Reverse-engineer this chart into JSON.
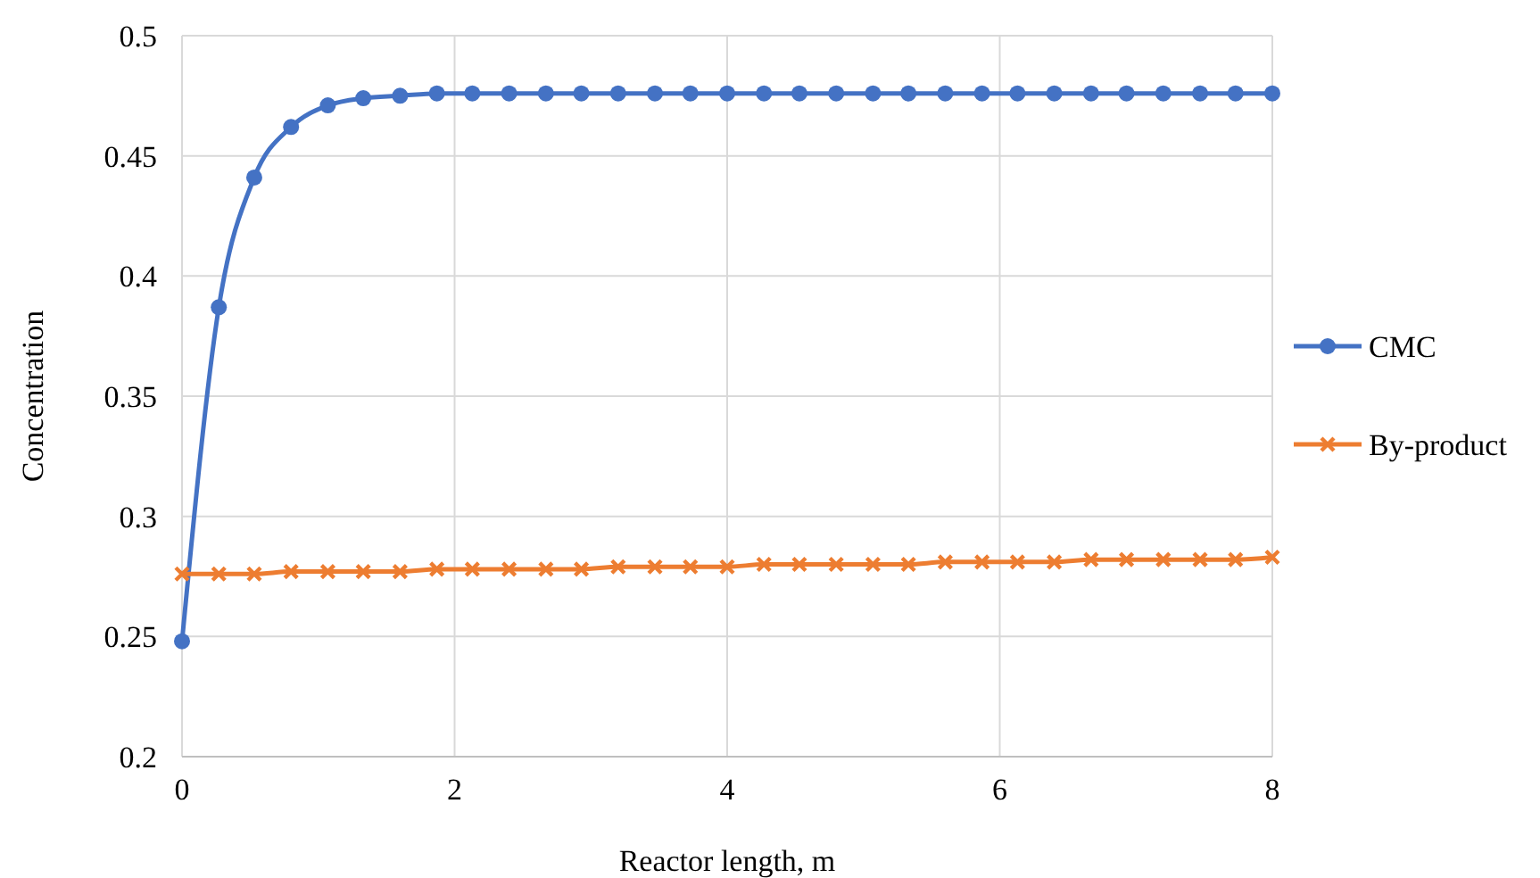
{
  "chart_data": {
    "type": "line",
    "xlabel": "Reactor length, m",
    "ylabel": "Concentration",
    "x": [
      0,
      0.27,
      0.53,
      0.8,
      1.07,
      1.33,
      1.6,
      1.87,
      2.13,
      2.4,
      2.67,
      2.93,
      3.2,
      3.47,
      3.73,
      4,
      4.27,
      4.53,
      4.8,
      5.07,
      5.33,
      5.6,
      5.87,
      6.13,
      6.4,
      6.67,
      6.93,
      7.2,
      7.47,
      7.73,
      8
    ],
    "series": [
      {
        "name": "CMC",
        "color": "#4472c4",
        "marker": "circle",
        "values": [
          0.248,
          0.387,
          0.441,
          0.462,
          0.471,
          0.474,
          0.475,
          0.476,
          0.476,
          0.476,
          0.476,
          0.476,
          0.476,
          0.476,
          0.476,
          0.476,
          0.476,
          0.476,
          0.476,
          0.476,
          0.476,
          0.476,
          0.476,
          0.476,
          0.476,
          0.476,
          0.476,
          0.476,
          0.476,
          0.476,
          0.476
        ]
      },
      {
        "name": "By-product",
        "color": "#ed7d31",
        "marker": "cross",
        "values": [
          0.276,
          0.276,
          0.276,
          0.277,
          0.277,
          0.277,
          0.277,
          0.278,
          0.278,
          0.278,
          0.278,
          0.278,
          0.279,
          0.279,
          0.279,
          0.279,
          0.28,
          0.28,
          0.28,
          0.28,
          0.28,
          0.281,
          0.281,
          0.281,
          0.281,
          0.282,
          0.282,
          0.282,
          0.282,
          0.282,
          0.283
        ]
      }
    ],
    "xlim": [
      0,
      8
    ],
    "xticks": [
      0,
      2,
      4,
      6,
      8
    ],
    "ylim": [
      0.2,
      0.5
    ],
    "yticks": [
      0.2,
      0.25,
      0.3,
      0.35,
      0.4,
      0.45,
      0.5
    ],
    "grid": true,
    "legend": "right",
    "line_style": "solid"
  }
}
